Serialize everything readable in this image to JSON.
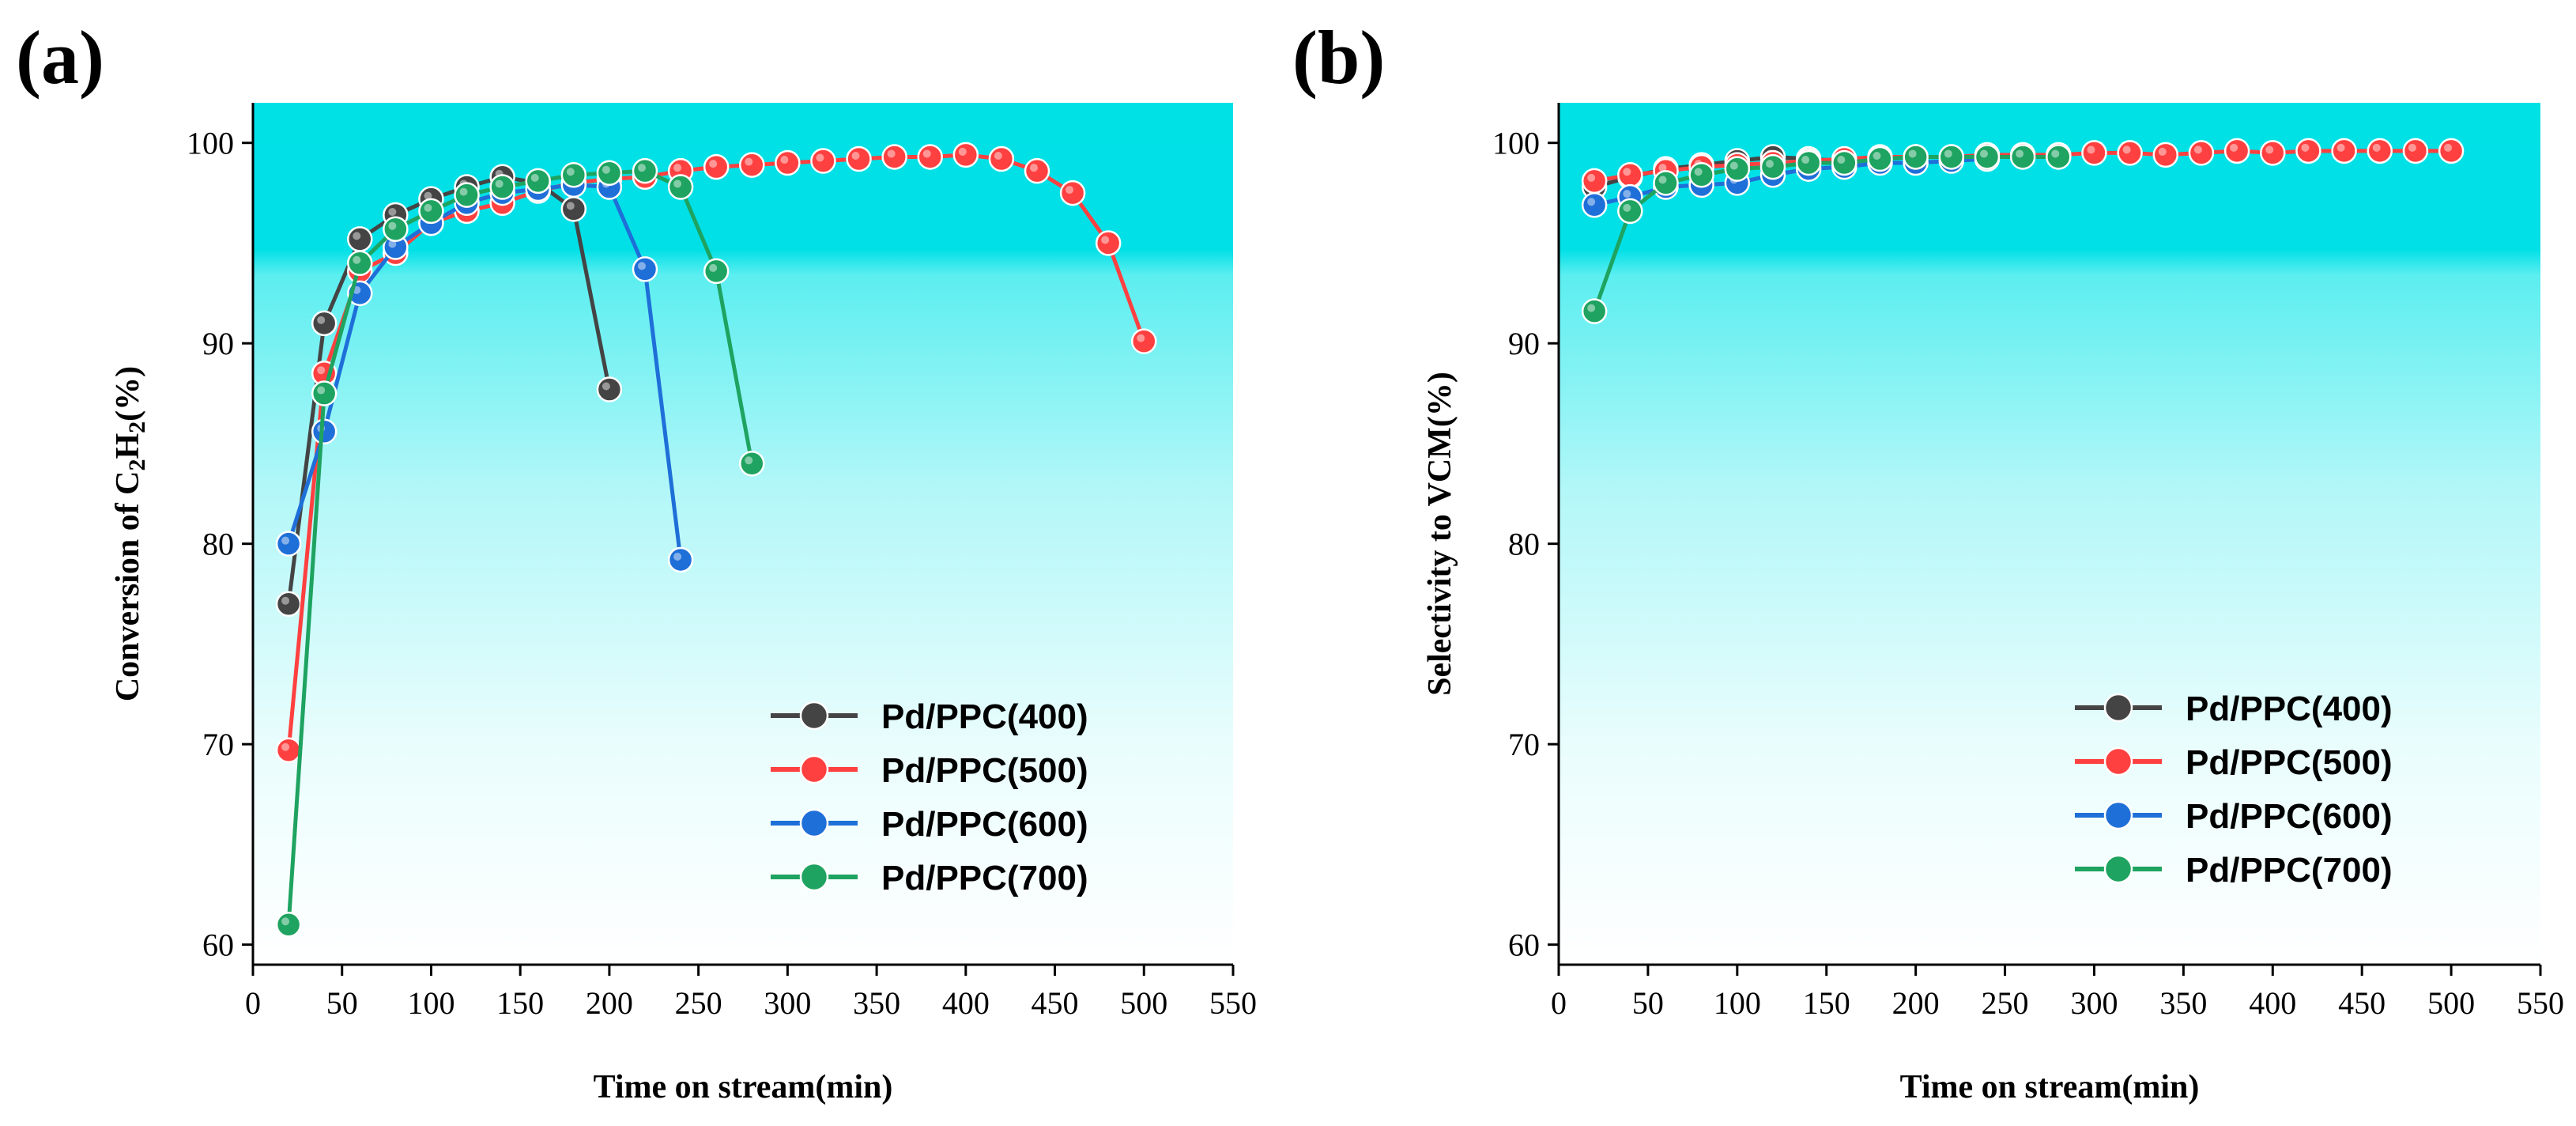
{
  "chart_data": [
    {
      "panel": "(a)",
      "type": "line",
      "title": "",
      "xlabel": "Time on stream(min)",
      "ylabel_parts": [
        "Conversion of C",
        "2",
        "H",
        "2",
        "(%)"
      ],
      "xlim": [
        0,
        550
      ],
      "ylim": [
        59,
        102
      ],
      "xticks": [
        0,
        50,
        100,
        150,
        200,
        250,
        300,
        350,
        400,
        450,
        500,
        550
      ],
      "yticks": [
        60,
        70,
        80,
        90,
        100
      ],
      "legend_position": "lower-right",
      "series": [
        {
          "name": "Pd/PPC(400)",
          "color": "#444444",
          "x": [
            20,
            40,
            60,
            80,
            100,
            120,
            140,
            160,
            180,
            200
          ],
          "y": [
            77,
            91,
            95.2,
            96.4,
            97.2,
            97.8,
            98.3,
            98.0,
            96.7,
            87.7
          ]
        },
        {
          "name": "Pd/PPC(500)",
          "color": "#ff4040",
          "x": [
            20,
            40,
            60,
            80,
            100,
            120,
            140,
            160,
            180,
            200,
            220,
            240,
            260,
            280,
            300,
            320,
            340,
            360,
            380,
            400,
            420,
            440,
            460,
            480,
            500
          ],
          "y": [
            69.7,
            88.5,
            93.6,
            94.5,
            96.0,
            96.6,
            97.0,
            97.6,
            98.0,
            98.2,
            98.3,
            98.6,
            98.8,
            98.9,
            99.0,
            99.1,
            99.2,
            99.3,
            99.3,
            99.4,
            99.2,
            98.6,
            97.5,
            95.0,
            90.1
          ]
        },
        {
          "name": "Pd/PPC(600)",
          "color": "#1f6fd8",
          "x": [
            20,
            40,
            60,
            80,
            100,
            120,
            140,
            160,
            180,
            200,
            220,
            240
          ],
          "y": [
            80,
            85.6,
            92.5,
            94.8,
            96.0,
            97.0,
            97.5,
            97.7,
            97.9,
            97.8,
            93.7,
            79.2
          ]
        },
        {
          "name": "Pd/PPC(700)",
          "color": "#1ea360",
          "x": [
            20,
            40,
            60,
            80,
            100,
            120,
            140,
            160,
            180,
            200,
            220,
            240,
            260,
            280
          ],
          "y": [
            61,
            87.5,
            94.0,
            95.7,
            96.6,
            97.4,
            97.8,
            98.1,
            98.4,
            98.5,
            98.6,
            97.8,
            93.6,
            84.0
          ]
        }
      ]
    },
    {
      "panel": "(b)",
      "type": "line",
      "title": "",
      "xlabel": "Time on stream(min)",
      "ylabel_parts": [
        "Selectivity to VCM(%)"
      ],
      "xlim": [
        0,
        550
      ],
      "ylim": [
        59,
        102
      ],
      "xticks": [
        0,
        50,
        100,
        150,
        200,
        250,
        300,
        350,
        400,
        450,
        500,
        550
      ],
      "yticks": [
        60,
        70,
        80,
        90,
        100
      ],
      "legend_position": "lower-right",
      "series": [
        {
          "name": "Pd/PPC(400)",
          "color": "#444444",
          "x": [
            20,
            40,
            60,
            80,
            100,
            120,
            140,
            160,
            180,
            200
          ],
          "y": [
            97.8,
            98.3,
            98.7,
            98.9,
            99.1,
            99.3,
            99.2,
            99.1,
            99.2,
            99.3
          ]
        },
        {
          "name": "Pd/PPC(500)",
          "color": "#ff4040",
          "x": [
            20,
            40,
            60,
            80,
            100,
            120,
            140,
            160,
            180,
            200,
            220,
            240,
            260,
            280,
            300,
            320,
            340,
            360,
            380,
            400,
            420,
            440,
            460,
            480,
            500
          ],
          "y": [
            98.1,
            98.4,
            98.6,
            98.8,
            98.9,
            99.0,
            99.1,
            99.2,
            99.3,
            99.3,
            99.3,
            99.4,
            99.4,
            99.4,
            99.5,
            99.5,
            99.4,
            99.5,
            99.6,
            99.5,
            99.6,
            99.6,
            99.6,
            99.6,
            99.6
          ]
        },
        {
          "name": "Pd/PPC(600)",
          "color": "#1f6fd8",
          "x": [
            20,
            40,
            60,
            80,
            100,
            120,
            140,
            160,
            180,
            200,
            220,
            240
          ],
          "y": [
            96.9,
            97.3,
            97.8,
            97.9,
            98.0,
            98.4,
            98.7,
            98.8,
            99.0,
            99.0,
            99.1,
            99.2
          ]
        },
        {
          "name": "Pd/PPC(700)",
          "color": "#1ea360",
          "x": [
            20,
            40,
            60,
            80,
            100,
            120,
            140,
            160,
            180,
            200,
            220,
            240,
            260,
            280
          ],
          "y": [
            91.6,
            96.6,
            98.0,
            98.4,
            98.7,
            98.8,
            99.0,
            99.0,
            99.2,
            99.3,
            99.3,
            99.3,
            99.3,
            99.3
          ]
        }
      ]
    }
  ]
}
